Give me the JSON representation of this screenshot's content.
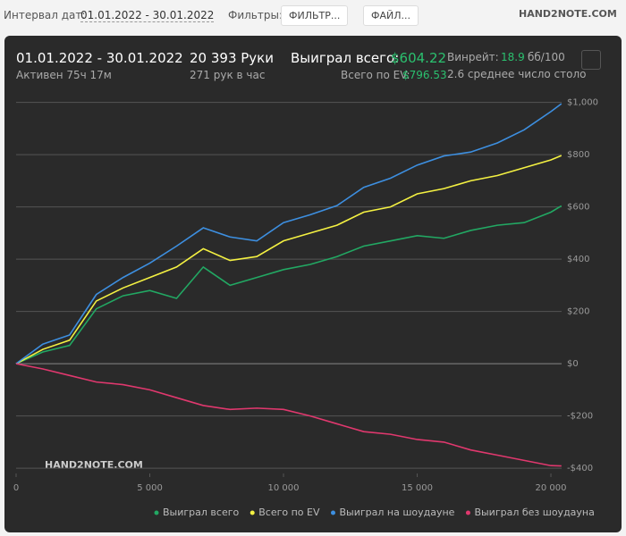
{
  "toolbar": {
    "date_label": "Интервал дат:",
    "date_range": "01.01.2022 - 30.01.2022",
    "filters_label": "Фильтры:",
    "filter_button": "ФИЛЬТР...",
    "file_button": "ФАЙЛ...",
    "logo": "HAND2NOTE.COM"
  },
  "summary": {
    "date_range": "01.01.2022 - 30.01.2022",
    "active": "Активен 75ч 17м",
    "hands": "20 393 Руки",
    "hands_per_hour": "271 рук в час",
    "won_label": "Выиграл всего:",
    "won_value": "$604.22",
    "ev_label": "Всего по EV:",
    "ev_value": "$796.53",
    "winrate_label": "Винрейт:",
    "winrate_value": "18.9",
    "winrate_unit": "бб/100",
    "tables": "2.6 среднее число столо"
  },
  "chart_data": {
    "type": "line",
    "watermark": "HAND2NOTE.COM",
    "x": [
      0,
      1000,
      2000,
      3000,
      4000,
      5000,
      6000,
      7000,
      8000,
      9000,
      10000,
      11000,
      12000,
      13000,
      14000,
      15000,
      16000,
      17000,
      18000,
      19000,
      20000,
      20393
    ],
    "series": [
      {
        "name": "Выиграл всего",
        "color": "#22a863",
        "values": [
          0,
          45,
          70,
          210,
          260,
          280,
          250,
          370,
          300,
          330,
          360,
          380,
          410,
          450,
          470,
          490,
          480,
          510,
          530,
          540,
          580,
          604.22
        ]
      },
      {
        "name": "Всего по EV",
        "color": "#f4f142",
        "values": [
          0,
          55,
          90,
          240,
          290,
          330,
          370,
          440,
          395,
          410,
          470,
          500,
          530,
          580,
          600,
          650,
          670,
          700,
          720,
          750,
          780,
          796.53
        ]
      },
      {
        "name": "Выиграл на шоудауне",
        "color": "#3d8fe0",
        "values": [
          0,
          75,
          110,
          265,
          330,
          385,
          450,
          520,
          485,
          470,
          540,
          570,
          605,
          675,
          710,
          760,
          795,
          810,
          845,
          895,
          965,
          995
        ]
      },
      {
        "name": "Выиграл без шоудауна",
        "color": "#e0386e",
        "values": [
          0,
          -20,
          -45,
          -70,
          -80,
          -100,
          -130,
          -160,
          -175,
          -170,
          -175,
          -200,
          -230,
          -260,
          -270,
          -290,
          -300,
          -330,
          -350,
          -370,
          -390,
          -391
        ]
      }
    ],
    "xlim": [
      0,
      20400
    ],
    "ylim": [
      -420,
      1050
    ],
    "xticks": [
      0,
      {
        "value": 5000,
        "label": "5 000"
      },
      {
        "value": 10000,
        "label": "10 000"
      },
      {
        "value": 15000,
        "label": "15 000"
      },
      {
        "value": 20000,
        "label": "20 000"
      }
    ],
    "yticks": [
      {
        "value": -400,
        "label": "-$400"
      },
      {
        "value": -200,
        "label": "-$200"
      },
      {
        "value": 0,
        "label": "$0"
      },
      {
        "value": 200,
        "label": "$200"
      },
      {
        "value": 400,
        "label": "$400"
      },
      {
        "value": 600,
        "label": "$600"
      },
      {
        "value": 800,
        "label": "$800"
      },
      {
        "value": 1000,
        "label": "$1,000"
      }
    ],
    "grid": true
  }
}
